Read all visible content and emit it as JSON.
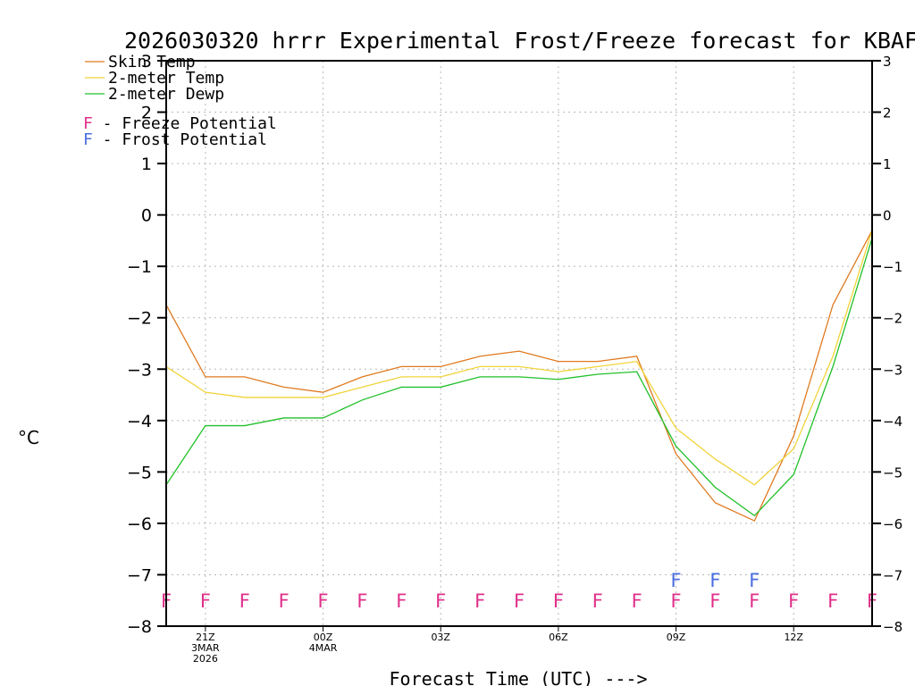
{
  "chart_data": {
    "type": "line",
    "title": "2026030320 hrrr Experimental Frost/Freeze forecast for KBAF",
    "ylabel": "°C",
    "xlabel": "Forecast Time (UTC) --->",
    "ylim": [
      -8,
      3
    ],
    "yticks": [
      3,
      2,
      1,
      0,
      -1,
      -2,
      -3,
      -4,
      -5,
      -6,
      -7,
      -8
    ],
    "grid": true,
    "x_hours": [
      0,
      1,
      2,
      3,
      4,
      5,
      6,
      7,
      8,
      9,
      10,
      11,
      12,
      13,
      14,
      15,
      16,
      17,
      18
    ],
    "x_range": [
      0,
      18
    ],
    "x_ticks": [
      {
        "hour": 1,
        "lines": [
          "21Z",
          "3MAR",
          "2026"
        ]
      },
      {
        "hour": 4,
        "lines": [
          "00Z",
          "4MAR"
        ]
      },
      {
        "hour": 7,
        "lines": [
          "03Z"
        ]
      },
      {
        "hour": 10,
        "lines": [
          "06Z"
        ]
      },
      {
        "hour": 13,
        "lines": [
          "09Z"
        ]
      },
      {
        "hour": 16,
        "lines": [
          "12Z"
        ]
      }
    ],
    "series": [
      {
        "name": "Skin Temp",
        "color": "#e07a1f",
        "values": [
          -1.75,
          -3.15,
          -3.15,
          -3.35,
          -3.45,
          -3.15,
          -2.95,
          -2.95,
          -2.75,
          -2.65,
          -2.85,
          -2.85,
          -2.75,
          -4.65,
          -5.6,
          -5.95,
          -4.3,
          -1.75,
          -0.3
        ]
      },
      {
        "name": "2-meter Temp",
        "color": "#f0d43a",
        "values": [
          -2.95,
          -3.45,
          -3.55,
          -3.55,
          -3.55,
          -3.35,
          -3.15,
          -3.15,
          -2.95,
          -2.95,
          -3.05,
          -2.95,
          -2.85,
          -4.15,
          -4.75,
          -5.25,
          -4.55,
          -2.75,
          -0.3
        ]
      },
      {
        "name": "2-meter Dewp",
        "color": "#22c02a",
        "values": [
          -5.25,
          -4.1,
          -4.1,
          -3.95,
          -3.95,
          -3.6,
          -3.35,
          -3.35,
          -3.15,
          -3.15,
          -3.2,
          -3.1,
          -3.05,
          -4.5,
          -5.3,
          -5.85,
          -5.05,
          -2.95,
          -0.45
        ]
      }
    ],
    "legend_position": "top-left",
    "potential_legend": [
      {
        "symbol": "F",
        "text": " - Freeze Potential",
        "color": "#e0308a"
      },
      {
        "symbol": "F",
        "text": " - Frost Potential",
        "color": "#4a6de0"
      }
    ],
    "freeze_flags": {
      "label": "F",
      "color": "#e0308a",
      "value": -7.5,
      "hours": [
        0,
        1,
        2,
        3,
        4,
        5,
        6,
        7,
        8,
        9,
        10,
        11,
        12,
        13,
        14,
        15,
        16,
        17,
        18
      ]
    },
    "frost_flags": {
      "label": "F",
      "color": "#4a6de0",
      "value": -7.1,
      "hours": [
        13,
        14,
        15
      ]
    }
  }
}
